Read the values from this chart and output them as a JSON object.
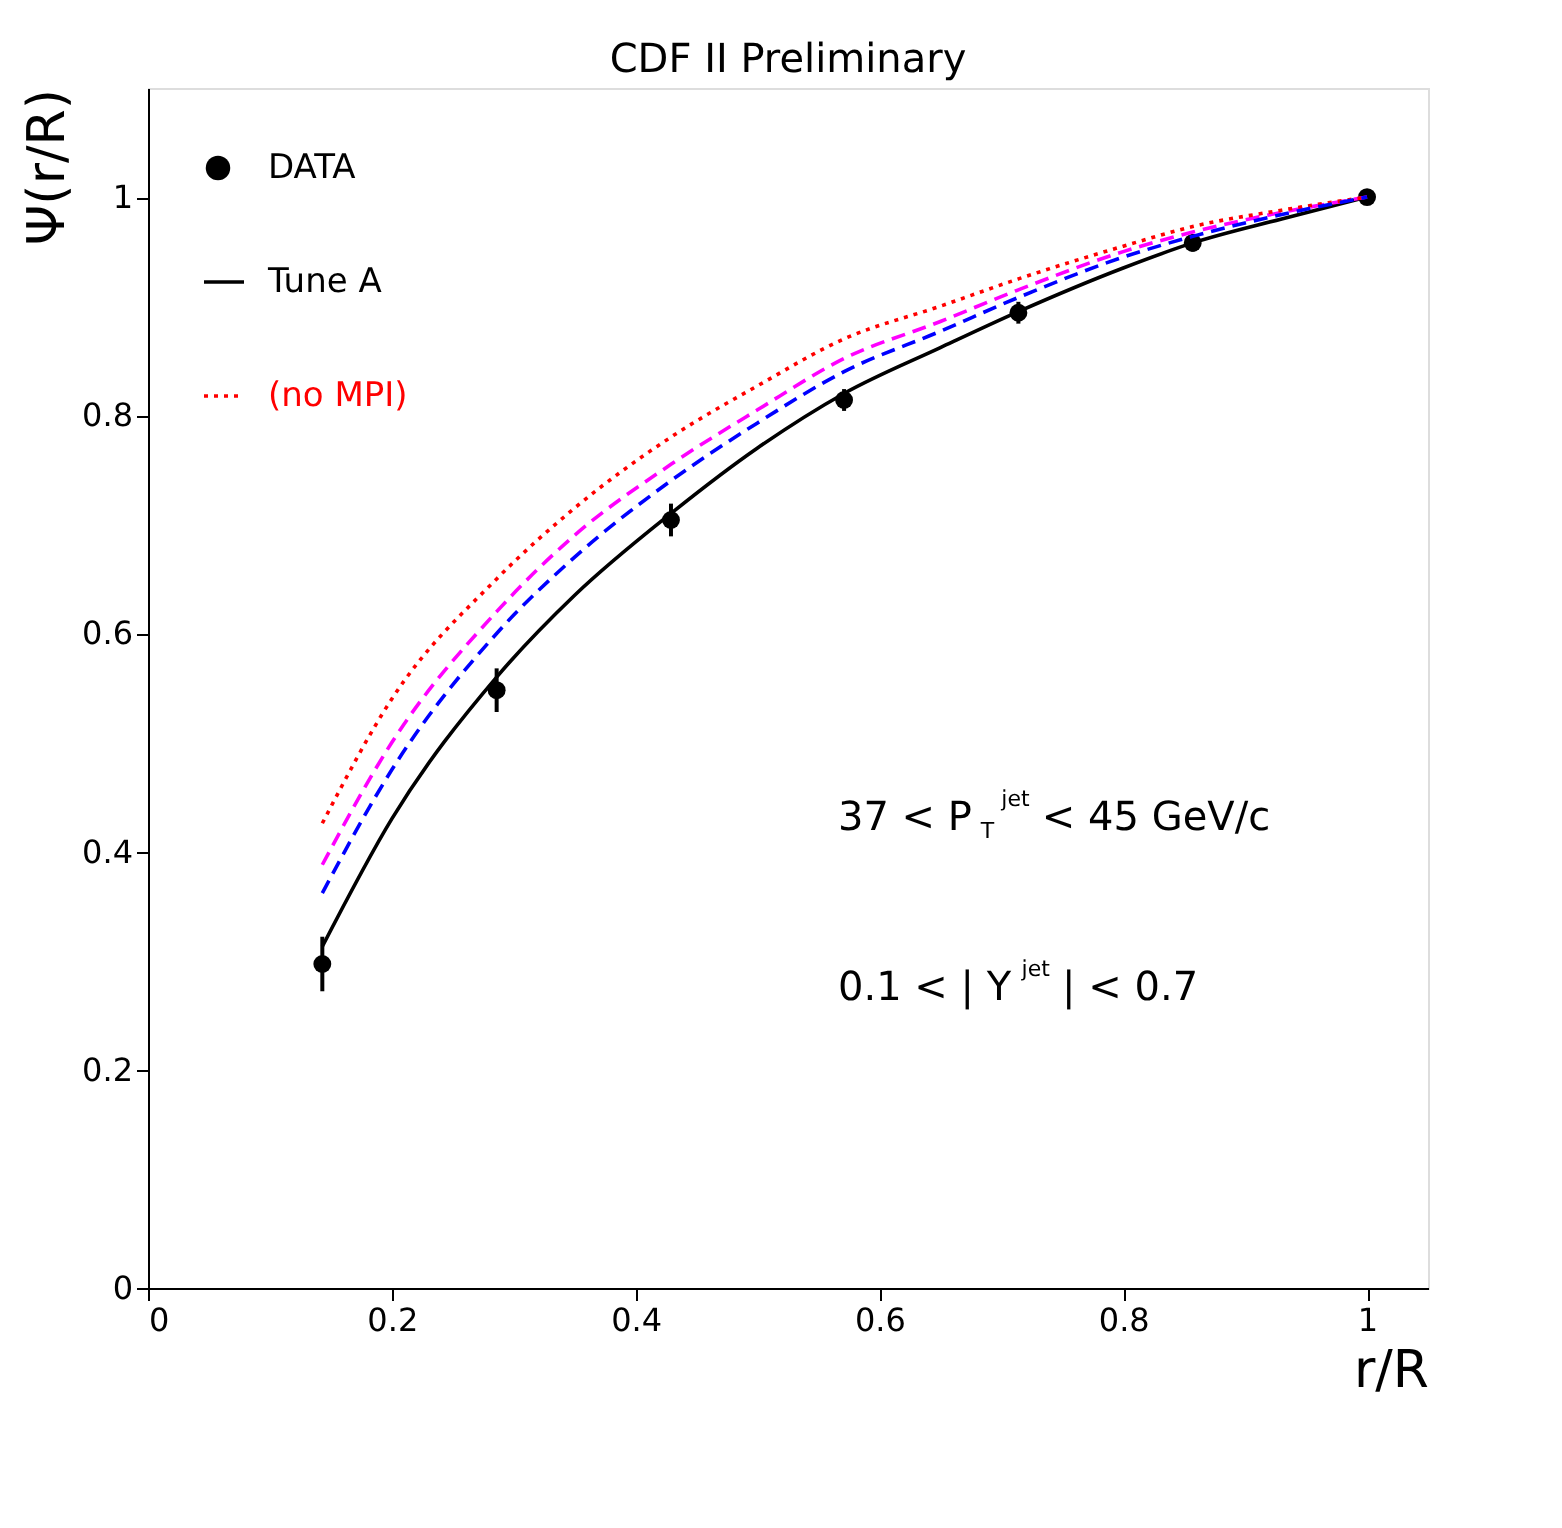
{
  "chart_data": {
    "type": "line",
    "title": "CDF II Preliminary",
    "xlabel": "r/R",
    "ylabel": "Ψ(r/R)",
    "xlim": [
      0,
      1.05
    ],
    "ylim": [
      0,
      1.1
    ],
    "xticks": [
      0,
      0.2,
      0.4,
      0.6,
      0.8,
      1
    ],
    "yticks": [
      0,
      0.2,
      0.4,
      0.6,
      0.8,
      1
    ],
    "grid": false,
    "legend": "top left",
    "annotations": [
      "37 < P$_{T}$$^{jet}$ < 45 GeV/c",
      "0.1 < | Y$^{jet}$ | < 0.7"
    ],
    "series": [
      {
        "name": "DATA",
        "type": "scatter",
        "marker": "circle",
        "color": "#000000",
        "x": [
          0.143,
          0.286,
          0.429,
          0.571,
          0.714,
          0.857,
          1.0
        ],
        "values": [
          0.297,
          0.548,
          0.704,
          0.814,
          0.894,
          0.958,
          1.0
        ],
        "errors": [
          0.025,
          0.02,
          0.015,
          0.01,
          0.01,
          0.008,
          0.005
        ]
      },
      {
        "name": "Tune A",
        "type": "line",
        "line_style": "solid",
        "color": "#000000",
        "x": [
          0.143,
          0.2,
          0.286,
          0.35,
          0.429,
          0.5,
          0.571,
          0.65,
          0.714,
          0.8,
          0.857,
          0.93,
          1.0
        ],
        "values": [
          0.313,
          0.43,
          0.56,
          0.635,
          0.71,
          0.77,
          0.82,
          0.862,
          0.895,
          0.935,
          0.958,
          0.98,
          1.0
        ]
      },
      {
        "type": "line",
        "line_style": "dashed",
        "color": "#ff00ff",
        "x": [
          0.143,
          0.2,
          0.286,
          0.35,
          0.429,
          0.5,
          0.571,
          0.65,
          0.714,
          0.8,
          0.857,
          0.93,
          1.0
        ],
        "values": [
          0.388,
          0.5,
          0.62,
          0.69,
          0.755,
          0.805,
          0.852,
          0.886,
          0.915,
          0.95,
          0.968,
          0.986,
          1.0
        ]
      },
      {
        "name": "(no MPI)",
        "type": "line",
        "line_style": "dotted",
        "color": "#ff0000",
        "x": [
          0.143,
          0.2,
          0.286,
          0.35,
          0.429,
          0.5,
          0.571,
          0.65,
          0.714,
          0.8,
          0.857,
          0.93,
          1.0
        ],
        "values": [
          0.426,
          0.54,
          0.65,
          0.715,
          0.78,
          0.827,
          0.87,
          0.9,
          0.925,
          0.955,
          0.973,
          0.988,
          1.0
        ]
      },
      {
        "type": "line",
        "line_style": "dashed",
        "color": "#0000ff",
        "x": [
          0.143,
          0.2,
          0.286,
          0.35,
          0.429,
          0.5,
          0.571,
          0.65,
          0.714,
          0.8,
          0.857,
          0.93,
          1.0
        ],
        "values": [
          0.362,
          0.475,
          0.6,
          0.67,
          0.74,
          0.793,
          0.84,
          0.877,
          0.908,
          0.945,
          0.964,
          0.984,
          1.0
        ]
      }
    ]
  }
}
